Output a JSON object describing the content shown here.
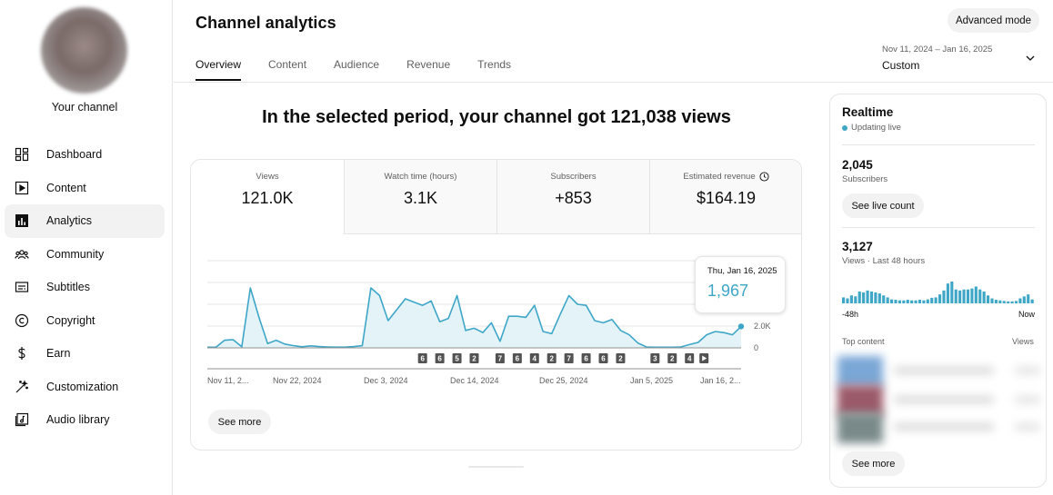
{
  "sidebar": {
    "channel_label": "Your channel",
    "items": [
      {
        "label": "Dashboard",
        "icon": "dashboard-icon"
      },
      {
        "label": "Content",
        "icon": "content-icon"
      },
      {
        "label": "Analytics",
        "icon": "analytics-icon",
        "active": true
      },
      {
        "label": "Community",
        "icon": "community-icon"
      },
      {
        "label": "Subtitles",
        "icon": "subtitles-icon"
      },
      {
        "label": "Copyright",
        "icon": "copyright-icon"
      },
      {
        "label": "Earn",
        "icon": "earn-icon"
      },
      {
        "label": "Customization",
        "icon": "customization-icon"
      },
      {
        "label": "Audio library",
        "icon": "audio-library-icon"
      }
    ]
  },
  "header": {
    "title": "Channel analytics",
    "tabs": [
      "Overview",
      "Content",
      "Audience",
      "Revenue",
      "Trends"
    ],
    "active_tab": "Overview",
    "advanced_mode_label": "Advanced mode",
    "date_range": {
      "dates": "Nov 11, 2024 – Jan 16, 2025",
      "label": "Custom"
    }
  },
  "headline": "In the selected period, your channel got 121,038 views",
  "metrics": [
    {
      "label": "Views",
      "value": "121.0K"
    },
    {
      "label": "Watch time (hours)",
      "value": "3.1K"
    },
    {
      "label": "Subscribers",
      "value": "+853"
    },
    {
      "label": "Estimated revenue",
      "value": "$164.19",
      "icon": "clock-icon"
    }
  ],
  "tooltip": {
    "date": "Thu, Jan 16, 2025",
    "value": "1,967"
  },
  "see_more_label": "See more",
  "chart_data": {
    "type": "area",
    "title": "",
    "xlabel": "",
    "ylabel": "",
    "ylim": [
      0,
      4000
    ],
    "y_ticks": [
      "0",
      "2.0K"
    ],
    "grid": true,
    "x_tick_labels": [
      "Nov 11, 2...",
      "Nov 22, 2024",
      "Dec 3, 2024",
      "Dec 14, 2024",
      "Dec 25, 2024",
      "Jan 5, 2025",
      "Jan 16, 2..."
    ],
    "series": [
      {
        "values": [
          60,
          60,
          700,
          750,
          100,
          5500,
          2800,
          400,
          700,
          350,
          200,
          100,
          180,
          120,
          80,
          70,
          70,
          120,
          200,
          5500,
          4800,
          2500,
          3500,
          4500,
          4200,
          3900,
          4300,
          2400,
          2700,
          4800,
          1600,
          1800,
          1400,
          2300,
          600,
          2900,
          2900,
          2800,
          3900,
          1500,
          1300,
          3100,
          4800,
          4000,
          3900,
          2500,
          2300,
          2600,
          1600,
          1200,
          450,
          80,
          60,
          60,
          60,
          80,
          300,
          500,
          1200,
          1500,
          1400,
          1200,
          1967
        ]
      }
    ],
    "markers": [
      "6",
      "6",
      "5",
      "2",
      "7",
      "6",
      "4",
      "2",
      "7",
      "6",
      "6",
      "2",
      "3",
      "2",
      "4"
    ]
  },
  "realtime": {
    "title": "Realtime",
    "status": "Updating live",
    "subscribers": {
      "value": "2,045",
      "label": "Subscribers"
    },
    "live_count_label": "See live count",
    "views": {
      "value": "3,127",
      "label": "Views · Last 48 hours"
    },
    "axis_left": "-48h",
    "axis_right": "Now",
    "hourly_views": [
      30,
      25,
      40,
      35,
      60,
      55,
      65,
      60,
      55,
      50,
      40,
      30,
      20,
      18,
      15,
      15,
      18,
      15,
      15,
      18,
      15,
      20,
      28,
      30,
      45,
      65,
      100,
      110,
      70,
      65,
      70,
      70,
      75,
      85,
      70,
      60,
      40,
      25,
      18,
      15,
      12,
      10,
      10,
      12,
      25,
      35,
      45,
      20
    ],
    "top_content_label": "Top content",
    "views_column_label": "Views",
    "see_more_label": "See more"
  },
  "colors": {
    "accent": "#3ea6c7",
    "fill": "#e3f3f8",
    "marker": "#535353"
  }
}
